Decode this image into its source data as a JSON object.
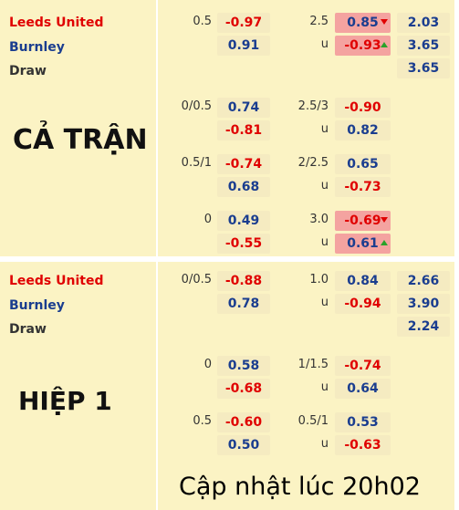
{
  "full_match": {
    "title": "CẢ TRẬN",
    "teams": {
      "home": "Leeds United",
      "away": "Burnley",
      "draw": "Draw"
    },
    "rows": [
      {
        "hcap": "0.5",
        "h1": "-0.97",
        "h2": "0.91",
        "ou": "2.5",
        "o1": "0.85",
        "o2": "-0.93",
        "ou_label": "u"
      },
      {
        "hcap": "0/0.5",
        "h1": "0.74",
        "h2": "-0.81",
        "ou": "2.5/3",
        "o1": "-0.90",
        "o2": "0.82",
        "ou_label": "u"
      },
      {
        "hcap": "0.5/1",
        "h1": "-0.74",
        "h2": "0.68",
        "ou": "2/2.5",
        "o1": "0.65",
        "o2": "-0.73",
        "ou_label": "u"
      },
      {
        "hcap": "0",
        "h1": "0.49",
        "h2": "-0.55",
        "ou": "3.0",
        "o1": "-0.69",
        "o2": "0.61",
        "ou_label": "u"
      }
    ],
    "x12": [
      "2.03",
      "3.65",
      "3.65"
    ]
  },
  "first_half": {
    "title": "HIỆP 1",
    "teams": {
      "home": "Leeds United",
      "away": "Burnley",
      "draw": "Draw"
    },
    "rows": [
      {
        "hcap": "0/0.5",
        "h1": "-0.88",
        "h2": "0.78",
        "ou": "1.0",
        "o1": "0.84",
        "o2": "-0.94",
        "ou_label": "u"
      },
      {
        "hcap": "0",
        "h1": "0.58",
        "h2": "-0.68",
        "ou": "1/1.5",
        "o1": "-0.74",
        "o2": "0.64",
        "ou_label": "u"
      },
      {
        "hcap": "0.5",
        "h1": "-0.60",
        "h2": "0.50",
        "ou": "0.5/1",
        "o1": "0.53",
        "o2": "-0.63",
        "ou_label": "u"
      }
    ],
    "x12": [
      "2.66",
      "3.90",
      "2.24"
    ]
  },
  "footer": {
    "updated": "Cập nhật lúc 20h02"
  },
  "colors": {
    "background": "#fbf3c4",
    "negative": "#e00000",
    "positive": "#1a3d8f",
    "home": "#e00000",
    "away": "#1a3d8f",
    "highlight": "#f4a3a0"
  }
}
